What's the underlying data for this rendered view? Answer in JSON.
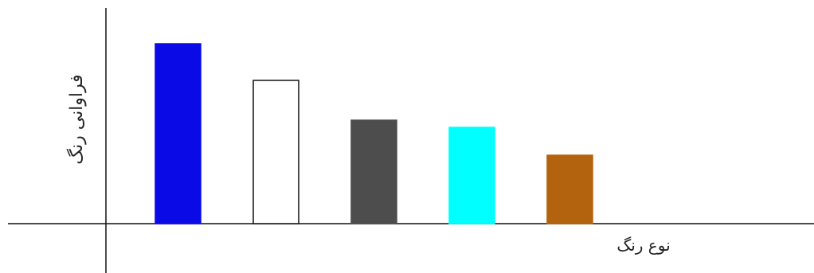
{
  "chart_data": {
    "type": "bar",
    "title": "",
    "xlabel": "نوع رنگ",
    "ylabel": "فراوانی رنگ",
    "categories": [
      "",
      "",
      "",
      "",
      ""
    ],
    "values": [
      226,
      180,
      130,
      121,
      86
    ],
    "ylim": [
      0,
      270
    ],
    "bar_colors": [
      "#0a0ae6",
      "#ffffff",
      "#4d4d4d",
      "#00ffff",
      "#b3630d"
    ],
    "bar_stroke": [
      "#0a0ae6",
      "#111111",
      "#4d4d4d",
      "#00ffff",
      "#b3630d"
    ],
    "grid": false,
    "legend": "none"
  }
}
